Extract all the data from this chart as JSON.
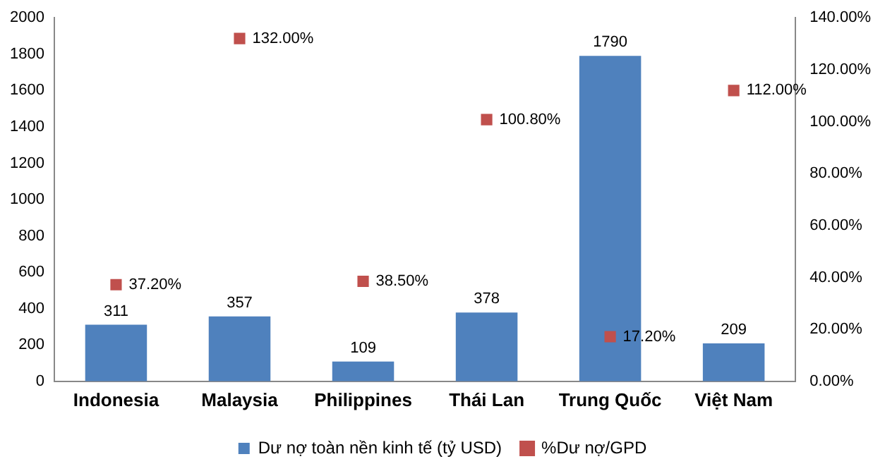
{
  "chart_data": {
    "type": "bar",
    "categories": [
      "Indonesia",
      "Malaysia",
      "Philippines",
      "Thái Lan",
      "Trung Quốc",
      "Việt Nam"
    ],
    "series": [
      {
        "name": "Dư nợ toàn nền kinh tế (tỷ USD)",
        "color": "#4f81bd",
        "values": [
          311,
          357,
          109,
          378,
          1790,
          209
        ],
        "value_labels": [
          "311",
          "357",
          "109",
          "378",
          "1790",
          "209"
        ]
      },
      {
        "name": "%Dư nợ/GPD",
        "type": "scatter",
        "axis": "y2",
        "marker": "square",
        "color": "#c0504d",
        "x": [
          "Indonesia",
          "Malaysia",
          "Philippines",
          "Thái Lan",
          "Trung Quốc",
          "Việt Nam"
        ],
        "values": [
          37.2,
          132,
          38.5,
          100.8,
          17.2,
          112
        ],
        "value_labels": [
          "37.20%",
          "132.00%",
          "38.50%",
          "100.80%",
          "17.20%",
          "112.00%"
        ]
      }
    ],
    "ylim": [
      0,
      2000
    ],
    "yticks": [
      0,
      200,
      400,
      600,
      800,
      1000,
      1200,
      1400,
      1600,
      1800,
      2000
    ],
    "y2lim": [
      0,
      140
    ],
    "y2ticks": [
      {
        "value": 0,
        "label": "0.00%"
      },
      {
        "value": 20,
        "label": "20.00%"
      },
      {
        "value": 40,
        "label": "40.00%"
      },
      {
        "value": 60,
        "label": "60.00%"
      },
      {
        "value": 80,
        "label": "80.00%"
      },
      {
        "value": 100,
        "label": "100.00%"
      },
      {
        "value": 120,
        "label": "120.00%"
      },
      {
        "value": 140,
        "label": "140.00%"
      }
    ],
    "grid": false,
    "legend": "bottom"
  }
}
